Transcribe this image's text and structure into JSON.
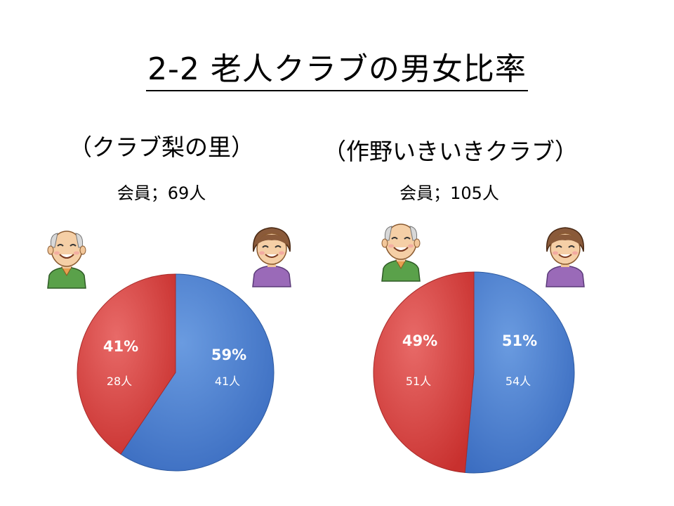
{
  "title": "2-2  老人クラブの男女比率",
  "colors": {
    "male": "#4a7fd0",
    "female": "#d9403e",
    "male_dark": "#2e5aa0",
    "female_dark": "#a82b29"
  },
  "icons": {
    "male": "elderly-man-icon",
    "female": "elderly-woman-icon"
  },
  "chart_data": [
    {
      "type": "pie",
      "title": "（クラブ梨の里）",
      "subtitle": "会員；69人",
      "slices": [
        {
          "label": "男性",
          "percent_label": "59%",
          "count_label": "41人",
          "value": 41
        },
        {
          "label": "女性",
          "percent_label": "41%",
          "count_label": "28人",
          "value": 28
        }
      ]
    },
    {
      "type": "pie",
      "title": "（作野いきいきクラブ）",
      "subtitle": "会員；105人",
      "slices": [
        {
          "label": "男性",
          "percent_label": "51%",
          "count_label": "54人",
          "value": 54
        },
        {
          "label": "女性",
          "percent_label": "49%",
          "count_label": "51人",
          "value": 51
        }
      ]
    }
  ]
}
